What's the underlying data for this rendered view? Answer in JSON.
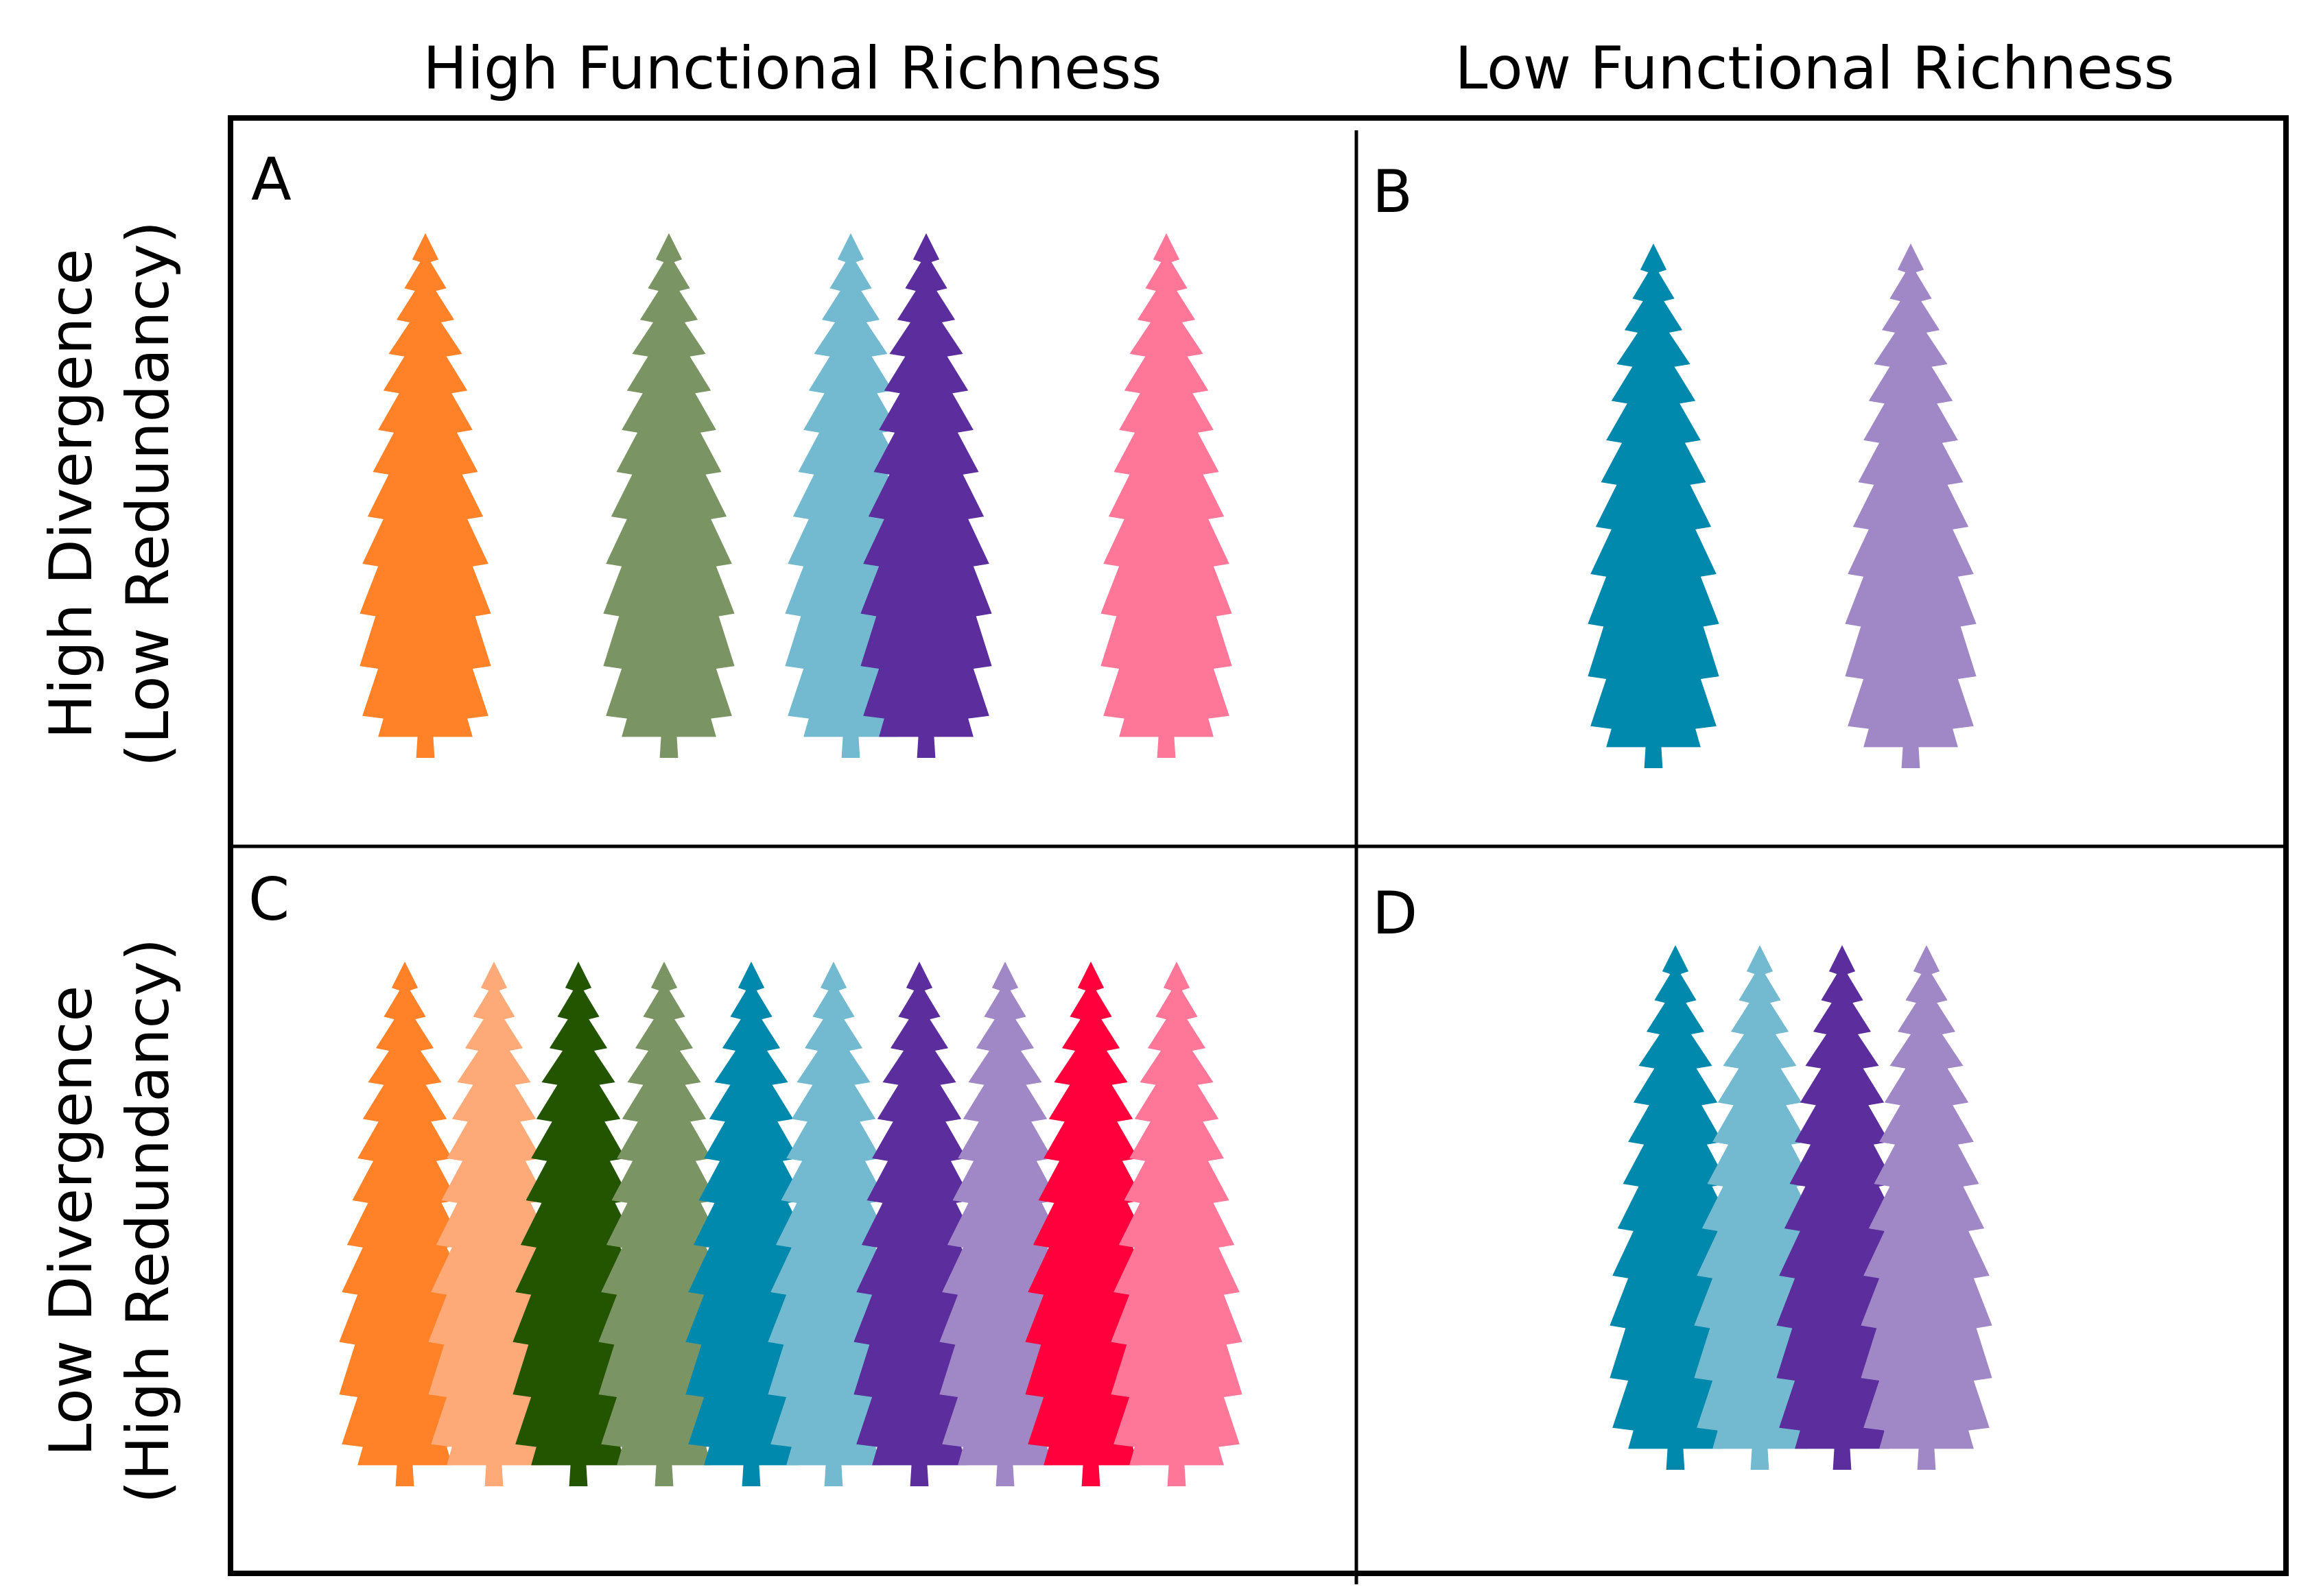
{
  "columns": {
    "left": "High Functional Richness",
    "right": "Low Functional Richness"
  },
  "rows": {
    "top": {
      "line1": "High Divergence",
      "line2": "(Low Redundancy)"
    },
    "bottom": {
      "line1": "Low Divergence",
      "line2": "(High Redundancy)"
    }
  },
  "panels": {
    "A": {
      "label": "A",
      "trees": [
        "#FF8128",
        "#7A9563",
        "#73BAD0",
        "#5B2D9D",
        "#FE7799"
      ]
    },
    "B": {
      "label": "B",
      "trees": [
        "#0089AD",
        "#A088C7"
      ]
    },
    "C": {
      "label": "C",
      "trees": [
        "#FF8128",
        "#FDAA78",
        "#235500",
        "#7A9563",
        "#0089AD",
        "#73BAD0",
        "#5B2D9D",
        "#A088C7",
        "#FF003C",
        "#FE7799"
      ]
    },
    "D": {
      "label": "D",
      "trees": [
        "#0089AD",
        "#73BAD0",
        "#5B2D9D",
        "#A088C7"
      ]
    }
  },
  "icons": {
    "tree": "spruce-tree-icon"
  }
}
